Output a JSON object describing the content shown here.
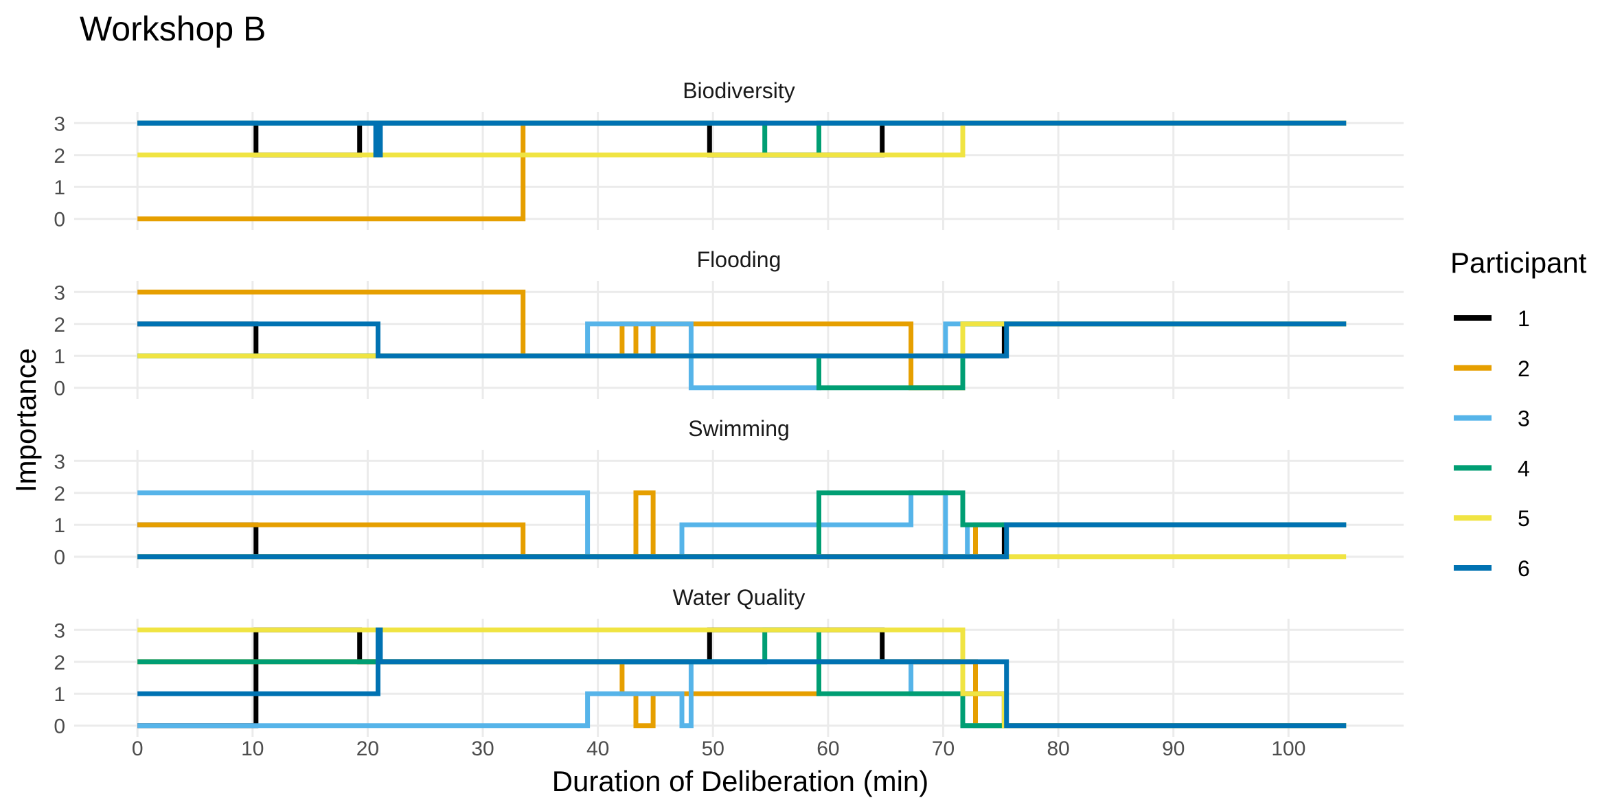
{
  "chart_data": {
    "type": "step-line",
    "title": "Workshop B",
    "xlabel": "Duration of Deliberation (min)",
    "ylabel": "Importance",
    "xlim": [
      -5.5,
      110
    ],
    "ylim": [
      -0.35,
      3.35
    ],
    "xticks": [
      0,
      10,
      20,
      30,
      40,
      50,
      60,
      70,
      80,
      90,
      100
    ],
    "yticks": [
      0,
      1,
      2,
      3
    ],
    "grid": true,
    "legend": {
      "title": "Participant",
      "position": "right",
      "entries": [
        {
          "name": "1",
          "color": "#000000"
        },
        {
          "name": "2",
          "color": "#E69F00"
        },
        {
          "name": "3",
          "color": "#56B4E9"
        },
        {
          "name": "4",
          "color": "#009E73"
        },
        {
          "name": "5",
          "color": "#F0E442"
        },
        {
          "name": "6",
          "color": "#0072B2"
        }
      ]
    },
    "facets": [
      {
        "name": "Biodiversity",
        "series": [
          {
            "participant": "1",
            "points": [
              [
                0,
                3
              ],
              [
                10.3,
                3
              ],
              [
                10.3,
                2
              ],
              [
                19.3,
                2
              ],
              [
                19.3,
                3
              ],
              [
                49.7,
                3
              ],
              [
                49.7,
                2
              ],
              [
                64.7,
                2
              ],
              [
                64.7,
                3
              ],
              [
                105,
                3
              ]
            ]
          },
          {
            "participant": "2",
            "points": [
              [
                0,
                0
              ],
              [
                33.5,
                0
              ],
              [
                33.5,
                3
              ],
              [
                105,
                3
              ]
            ]
          },
          {
            "participant": "3",
            "points": [
              [
                0,
                3
              ],
              [
                105,
                3
              ]
            ]
          },
          {
            "participant": "4",
            "points": [
              [
                0,
                3
              ],
              [
                54.5,
                3
              ],
              [
                54.5,
                2
              ],
              [
                59.2,
                2
              ],
              [
                59.2,
                3
              ],
              [
                105,
                3
              ]
            ]
          },
          {
            "participant": "5",
            "points": [
              [
                0,
                2
              ],
              [
                71.7,
                2
              ],
              [
                71.7,
                3
              ],
              [
                105,
                3
              ]
            ]
          },
          {
            "participant": "6",
            "points": [
              [
                0,
                3
              ],
              [
                20.7,
                3
              ],
              [
                20.7,
                2
              ],
              [
                21.1,
                2
              ],
              [
                21.1,
                3
              ],
              [
                105,
                3
              ]
            ]
          }
        ]
      },
      {
        "name": "Flooding",
        "series": [
          {
            "participant": "1",
            "points": [
              [
                0,
                2
              ],
              [
                10.3,
                2
              ],
              [
                10.3,
                1
              ],
              [
                75.3,
                1
              ],
              [
                75.3,
                2
              ],
              [
                105,
                2
              ]
            ]
          },
          {
            "participant": "2",
            "points": [
              [
                0,
                3
              ],
              [
                33.5,
                3
              ],
              [
                33.5,
                1
              ],
              [
                42.1,
                1
              ],
              [
                42.1,
                2
              ],
              [
                43.3,
                2
              ],
              [
                43.3,
                1
              ],
              [
                44.8,
                1
              ],
              [
                44.8,
                2
              ],
              [
                67.2,
                2
              ],
              [
                67.2,
                0
              ],
              [
                71.7,
                0
              ],
              [
                71.7,
                2
              ],
              [
                105,
                2
              ]
            ]
          },
          {
            "participant": "3",
            "points": [
              [
                0,
                1
              ],
              [
                39.1,
                1
              ],
              [
                39.1,
                2
              ],
              [
                48.1,
                2
              ],
              [
                48.1,
                0
              ],
              [
                59.2,
                0
              ],
              [
                59.2,
                1
              ],
              [
                70.2,
                1
              ],
              [
                70.2,
                2
              ],
              [
                105,
                2
              ]
            ]
          },
          {
            "participant": "4",
            "points": [
              [
                0,
                1
              ],
              [
                59.2,
                1
              ],
              [
                59.2,
                0
              ],
              [
                71.7,
                0
              ],
              [
                71.7,
                2
              ],
              [
                105,
                2
              ]
            ]
          },
          {
            "participant": "5",
            "points": [
              [
                0,
                1
              ],
              [
                20.7,
                1
              ],
              [
                20.7,
                1
              ],
              [
                71.7,
                1
              ],
              [
                71.7,
                2
              ],
              [
                105,
                2
              ]
            ]
          },
          {
            "participant": "6",
            "points": [
              [
                0,
                2
              ],
              [
                20.9,
                2
              ],
              [
                20.9,
                1
              ],
              [
                75.5,
                1
              ],
              [
                75.5,
                2
              ],
              [
                105,
                2
              ]
            ]
          }
        ]
      },
      {
        "name": "Swimming",
        "series": [
          {
            "participant": "1",
            "points": [
              [
                0,
                1
              ],
              [
                10.3,
                1
              ],
              [
                10.3,
                0
              ],
              [
                75.3,
                0
              ],
              [
                75.3,
                1
              ],
              [
                105,
                1
              ]
            ]
          },
          {
            "participant": "2",
            "points": [
              [
                0,
                1
              ],
              [
                33.5,
                1
              ],
              [
                33.5,
                0
              ],
              [
                43.3,
                0
              ],
              [
                43.3,
                2
              ],
              [
                44.8,
                2
              ],
              [
                44.8,
                0
              ],
              [
                59.2,
                0
              ],
              [
                59.2,
                0
              ],
              [
                67.2,
                0
              ],
              [
                67.2,
                0
              ],
              [
                72.8,
                0
              ],
              [
                72.8,
                1
              ],
              [
                105,
                1
              ]
            ]
          },
          {
            "participant": "3",
            "points": [
              [
                0,
                2
              ],
              [
                39.1,
                2
              ],
              [
                39.1,
                0
              ],
              [
                47.3,
                0
              ],
              [
                47.3,
                1
              ],
              [
                67.2,
                1
              ],
              [
                67.2,
                2
              ],
              [
                70.2,
                2
              ],
              [
                70.2,
                0
              ],
              [
                72.1,
                0
              ],
              [
                72.1,
                1
              ],
              [
                105,
                1
              ]
            ]
          },
          {
            "participant": "4",
            "points": [
              [
                0,
                0
              ],
              [
                59.2,
                0
              ],
              [
                59.2,
                2
              ],
              [
                71.7,
                2
              ],
              [
                71.7,
                1
              ],
              [
                105,
                1
              ]
            ]
          },
          {
            "participant": "5",
            "points": [
              [
                0,
                0
              ],
              [
                105,
                0
              ]
            ]
          },
          {
            "participant": "6",
            "points": [
              [
                0,
                0
              ],
              [
                75.5,
                0
              ],
              [
                75.5,
                1
              ],
              [
                105,
                1
              ]
            ]
          }
        ]
      },
      {
        "name": "Water Quality",
        "series": [
          {
            "participant": "1",
            "points": [
              [
                0,
                0
              ],
              [
                10.3,
                0
              ],
              [
                10.3,
                3
              ],
              [
                19.3,
                3
              ],
              [
                19.3,
                2
              ],
              [
                49.7,
                2
              ],
              [
                49.7,
                3
              ],
              [
                64.7,
                3
              ],
              [
                64.7,
                2
              ],
              [
                71.7,
                2
              ],
              [
                71.7,
                1
              ],
              [
                75.3,
                1
              ],
              [
                75.3,
                0
              ],
              [
                105,
                0
              ]
            ]
          },
          {
            "participant": "2",
            "points": [
              [
                0,
                2
              ],
              [
                42.1,
                2
              ],
              [
                42.1,
                1
              ],
              [
                43.3,
                1
              ],
              [
                43.3,
                0
              ],
              [
                44.8,
                0
              ],
              [
                44.8,
                1
              ],
              [
                59.2,
                1
              ],
              [
                59.2,
                2
              ],
              [
                72.8,
                2
              ],
              [
                72.8,
                0
              ],
              [
                105,
                0
              ]
            ]
          },
          {
            "participant": "3",
            "points": [
              [
                0,
                0
              ],
              [
                39.1,
                0
              ],
              [
                39.1,
                1
              ],
              [
                47.3,
                1
              ],
              [
                47.3,
                0
              ],
              [
                48.1,
                0
              ],
              [
                48.1,
                2
              ],
              [
                67.2,
                2
              ],
              [
                67.2,
                1
              ],
              [
                71.7,
                1
              ],
              [
                71.7,
                0
              ],
              [
                105,
                0
              ]
            ]
          },
          {
            "participant": "4",
            "points": [
              [
                0,
                2
              ],
              [
                54.5,
                2
              ],
              [
                54.5,
                3
              ],
              [
                59.2,
                3
              ],
              [
                59.2,
                1
              ],
              [
                71.7,
                1
              ],
              [
                71.7,
                0
              ],
              [
                105,
                0
              ]
            ]
          },
          {
            "participant": "5",
            "points": [
              [
                0,
                3
              ],
              [
                71.7,
                3
              ],
              [
                71.7,
                1
              ],
              [
                75.3,
                1
              ],
              [
                75.3,
                0
              ],
              [
                105,
                0
              ]
            ]
          },
          {
            "participant": "6",
            "points": [
              [
                0,
                1
              ],
              [
                20.9,
                1
              ],
              [
                20.9,
                3
              ],
              [
                21.1,
                3
              ],
              [
                21.1,
                2
              ],
              [
                75.5,
                2
              ],
              [
                75.5,
                0
              ],
              [
                105,
                0
              ]
            ]
          }
        ]
      }
    ]
  }
}
